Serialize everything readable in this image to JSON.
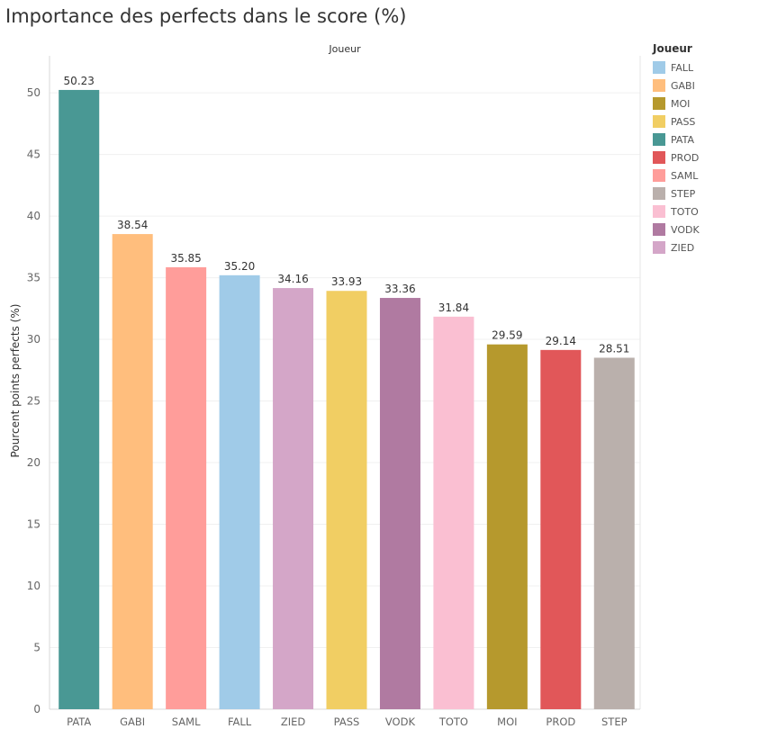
{
  "chart_data": {
    "type": "bar",
    "title": "Importance des perfects dans le score (%)",
    "column_header": "Joueur",
    "xlabel": "",
    "ylabel": "Pourcent points perfects (%)",
    "ylim": [
      0,
      53
    ],
    "yticks": [
      0,
      5,
      10,
      15,
      20,
      25,
      30,
      35,
      40,
      45,
      50
    ],
    "grid": true,
    "categories": [
      "PATA",
      "GABI",
      "SAML",
      "FALL",
      "ZIED",
      "PASS",
      "VODK",
      "TOTO",
      "MOI",
      "PROD",
      "STEP"
    ],
    "values": [
      50.23,
      38.54,
      35.85,
      35.2,
      34.16,
      33.93,
      33.36,
      31.84,
      29.59,
      29.14,
      28.51
    ],
    "value_labels": [
      "50.23",
      "38.54",
      "35.85",
      "35.20",
      "34.16",
      "33.93",
      "33.36",
      "31.84",
      "29.59",
      "29.14",
      "28.51"
    ],
    "colors": {
      "PATA": "#499894",
      "GABI": "#FFBE7D",
      "SAML": "#FF9D9A",
      "FALL": "#A0CBE8",
      "ZIED": "#D4A6C8",
      "PASS": "#F1CE63",
      "VODK": "#B07AA1",
      "TOTO": "#FABFD2",
      "MOI": "#B6992D",
      "PROD": "#E15759",
      "STEP": "#BAB0AC"
    },
    "legend": {
      "title": "Joueur",
      "position": "right",
      "entries": [
        "FALL",
        "GABI",
        "MOI",
        "PASS",
        "PATA",
        "PROD",
        "SAML",
        "STEP",
        "TOTO",
        "VODK",
        "ZIED"
      ]
    }
  }
}
